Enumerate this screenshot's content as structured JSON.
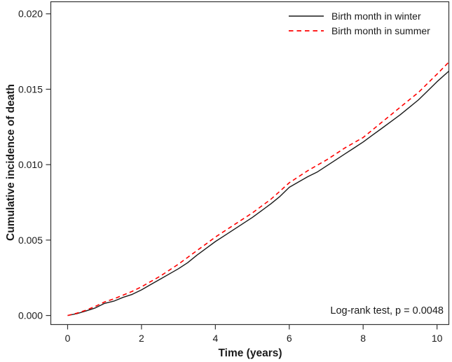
{
  "figure": {
    "background_color": "#ffffff",
    "frame_color": "#333333",
    "text_color": "#1a1a1a"
  },
  "legend": {
    "items": [
      {
        "label": "Birth month in winter",
        "color": "#1a1a1a",
        "style": "solid"
      },
      {
        "label": "Birth month in summer",
        "color": "#ff0000",
        "style": "dashed"
      }
    ]
  },
  "annotation": {
    "text": "Log-rank test, p = 0.0048"
  },
  "chart_data": {
    "type": "line",
    "title": "",
    "xlabel": "Time (years)",
    "ylabel": "Cumulative incidence of death",
    "xlim": [
      -0.455,
      10.32
    ],
    "ylim": [
      -0.0006,
      0.0208
    ],
    "x_ticks": [
      0,
      2,
      4,
      6,
      8,
      10
    ],
    "x_tick_labels": [
      "0",
      "2",
      "4",
      "6",
      "8",
      "10"
    ],
    "y_ticks": [
      0.0,
      0.005,
      0.01,
      0.015,
      0.02
    ],
    "y_tick_labels": [
      "0.000",
      "0.005",
      "0.010",
      "0.015",
      "0.020"
    ],
    "grid": false,
    "legend_position": "top-right-inside",
    "annotation": "Log-rank test, p = 0.0048",
    "series": [
      {
        "name": "Birth month in winter",
        "color": "#1a1a1a",
        "line_style": "solid",
        "points": [
          [
            0,
            0.0
          ],
          [
            0.25,
            0.00012
          ],
          [
            0.5,
            0.0003
          ],
          [
            0.75,
            0.0005
          ],
          [
            1,
            0.0008
          ],
          [
            1.25,
            0.00095
          ],
          [
            1.5,
            0.0012
          ],
          [
            1.75,
            0.0014
          ],
          [
            2,
            0.0017
          ],
          [
            2.25,
            0.00205
          ],
          [
            2.5,
            0.0024
          ],
          [
            2.75,
            0.00275
          ],
          [
            3,
            0.0031
          ],
          [
            3.25,
            0.0035
          ],
          [
            3.5,
            0.004
          ],
          [
            3.75,
            0.00445
          ],
          [
            4,
            0.0049
          ],
          [
            4.25,
            0.0053
          ],
          [
            4.5,
            0.0057
          ],
          [
            4.75,
            0.0061
          ],
          [
            5,
            0.0065
          ],
          [
            5.25,
            0.00695
          ],
          [
            5.5,
            0.0074
          ],
          [
            5.75,
            0.0079
          ],
          [
            6,
            0.0085
          ],
          [
            6.25,
            0.00885
          ],
          [
            6.5,
            0.0092
          ],
          [
            6.75,
            0.0095
          ],
          [
            7,
            0.0099
          ],
          [
            7.25,
            0.0103
          ],
          [
            7.5,
            0.0107
          ],
          [
            7.75,
            0.0111
          ],
          [
            8,
            0.0115
          ],
          [
            8.25,
            0.01195
          ],
          [
            8.5,
            0.0124
          ],
          [
            8.75,
            0.01285
          ],
          [
            9,
            0.0133
          ],
          [
            9.25,
            0.0138
          ],
          [
            9.5,
            0.0143
          ],
          [
            9.75,
            0.0149
          ],
          [
            10,
            0.0155
          ],
          [
            10.32,
            0.0162
          ]
        ]
      },
      {
        "name": "Birth month in summer",
        "color": "#ff0000",
        "line_style": "dashed",
        "points": [
          [
            0,
            0.0
          ],
          [
            0.25,
            0.00015
          ],
          [
            0.5,
            0.00035
          ],
          [
            0.75,
            0.0006
          ],
          [
            1,
            0.0009
          ],
          [
            1.25,
            0.0011
          ],
          [
            1.5,
            0.00135
          ],
          [
            1.75,
            0.0016
          ],
          [
            2,
            0.0019
          ],
          [
            2.25,
            0.00225
          ],
          [
            2.5,
            0.0026
          ],
          [
            2.75,
            0.003
          ],
          [
            3,
            0.0034
          ],
          [
            3.25,
            0.00385
          ],
          [
            3.5,
            0.0043
          ],
          [
            3.75,
            0.00475
          ],
          [
            4,
            0.0052
          ],
          [
            4.25,
            0.0056
          ],
          [
            4.5,
            0.006
          ],
          [
            4.75,
            0.0064
          ],
          [
            5,
            0.0068
          ],
          [
            5.25,
            0.00725
          ],
          [
            5.5,
            0.0077
          ],
          [
            5.75,
            0.00825
          ],
          [
            6,
            0.0088
          ],
          [
            6.25,
            0.0092
          ],
          [
            6.5,
            0.0096
          ],
          [
            6.75,
            0.00995
          ],
          [
            7,
            0.0103
          ],
          [
            7.25,
            0.0107
          ],
          [
            7.5,
            0.0111
          ],
          [
            7.75,
            0.01145
          ],
          [
            8,
            0.0118
          ],
          [
            8.25,
            0.0123
          ],
          [
            8.5,
            0.0128
          ],
          [
            8.75,
            0.0133
          ],
          [
            9,
            0.0138
          ],
          [
            9.25,
            0.0143
          ],
          [
            9.5,
            0.0148
          ],
          [
            9.75,
            0.0154
          ],
          [
            10,
            0.016
          ],
          [
            10.32,
            0.0168
          ]
        ]
      }
    ]
  }
}
